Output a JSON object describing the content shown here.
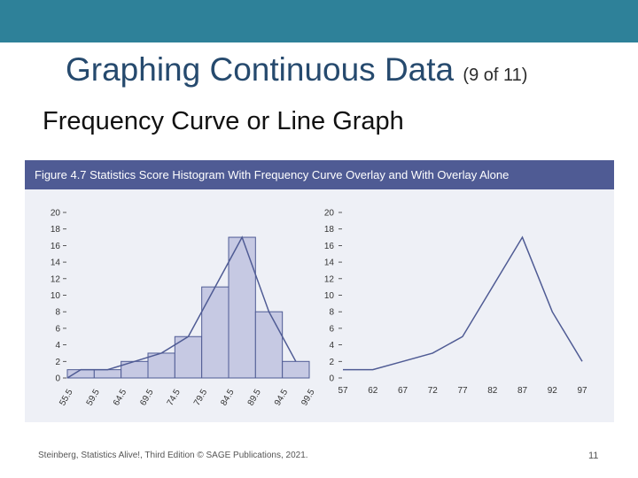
{
  "slide": {
    "title": "Graphing Continuous Data",
    "title_suffix": "(9 of 11)",
    "subtitle": "Frequency Curve or Line Graph",
    "footer": "Steinberg, Statistics Alive!, Third Edition © SAGE Publications, 2021.",
    "page_number": "11",
    "colors": {
      "top_bar": "#2e8199",
      "figure_header": "#4f5b94",
      "bars": "#c6c9e3",
      "line": "#4f5b94"
    }
  },
  "figure": {
    "caption": "Figure 4.7   Statistics Score Histogram With Frequency Curve Overlay and With Overlay Alone"
  },
  "chart_data": [
    {
      "type": "bar",
      "overlay": "line",
      "bin_edges": [
        "55.5",
        "59.5",
        "64.5",
        "69.5",
        "74.5",
        "79.5",
        "84.5",
        "89.5",
        "94.5",
        "99.5"
      ],
      "categories": [
        "57",
        "62",
        "67",
        "72",
        "77",
        "82",
        "87",
        "92",
        "97"
      ],
      "values": [
        1,
        1,
        2,
        3,
        5,
        11,
        17,
        8,
        2
      ],
      "line_x": [
        "55.5",
        "57",
        "62",
        "67",
        "72",
        "77",
        "82",
        "87",
        "92",
        "97"
      ],
      "line_values": [
        0,
        1,
        1,
        2,
        3,
        5,
        11,
        17,
        8,
        2
      ],
      "yticks": [
        "0",
        "2",
        "4",
        "6",
        "8",
        "10",
        "12",
        "14",
        "16",
        "18",
        "20"
      ],
      "ylim": [
        0,
        20
      ],
      "xlabel": "",
      "ylabel": "",
      "title": ""
    },
    {
      "type": "line",
      "x": [
        "57",
        "62",
        "67",
        "72",
        "77",
        "82",
        "87",
        "92",
        "97"
      ],
      "values": [
        1,
        1,
        2,
        3,
        5,
        11,
        17,
        8,
        2
      ],
      "yticks": [
        "0",
        "2",
        "4",
        "6",
        "8",
        "10",
        "12",
        "14",
        "16",
        "18",
        "20"
      ],
      "ylim": [
        0,
        20
      ],
      "xlabel": "",
      "ylabel": "",
      "title": ""
    }
  ]
}
